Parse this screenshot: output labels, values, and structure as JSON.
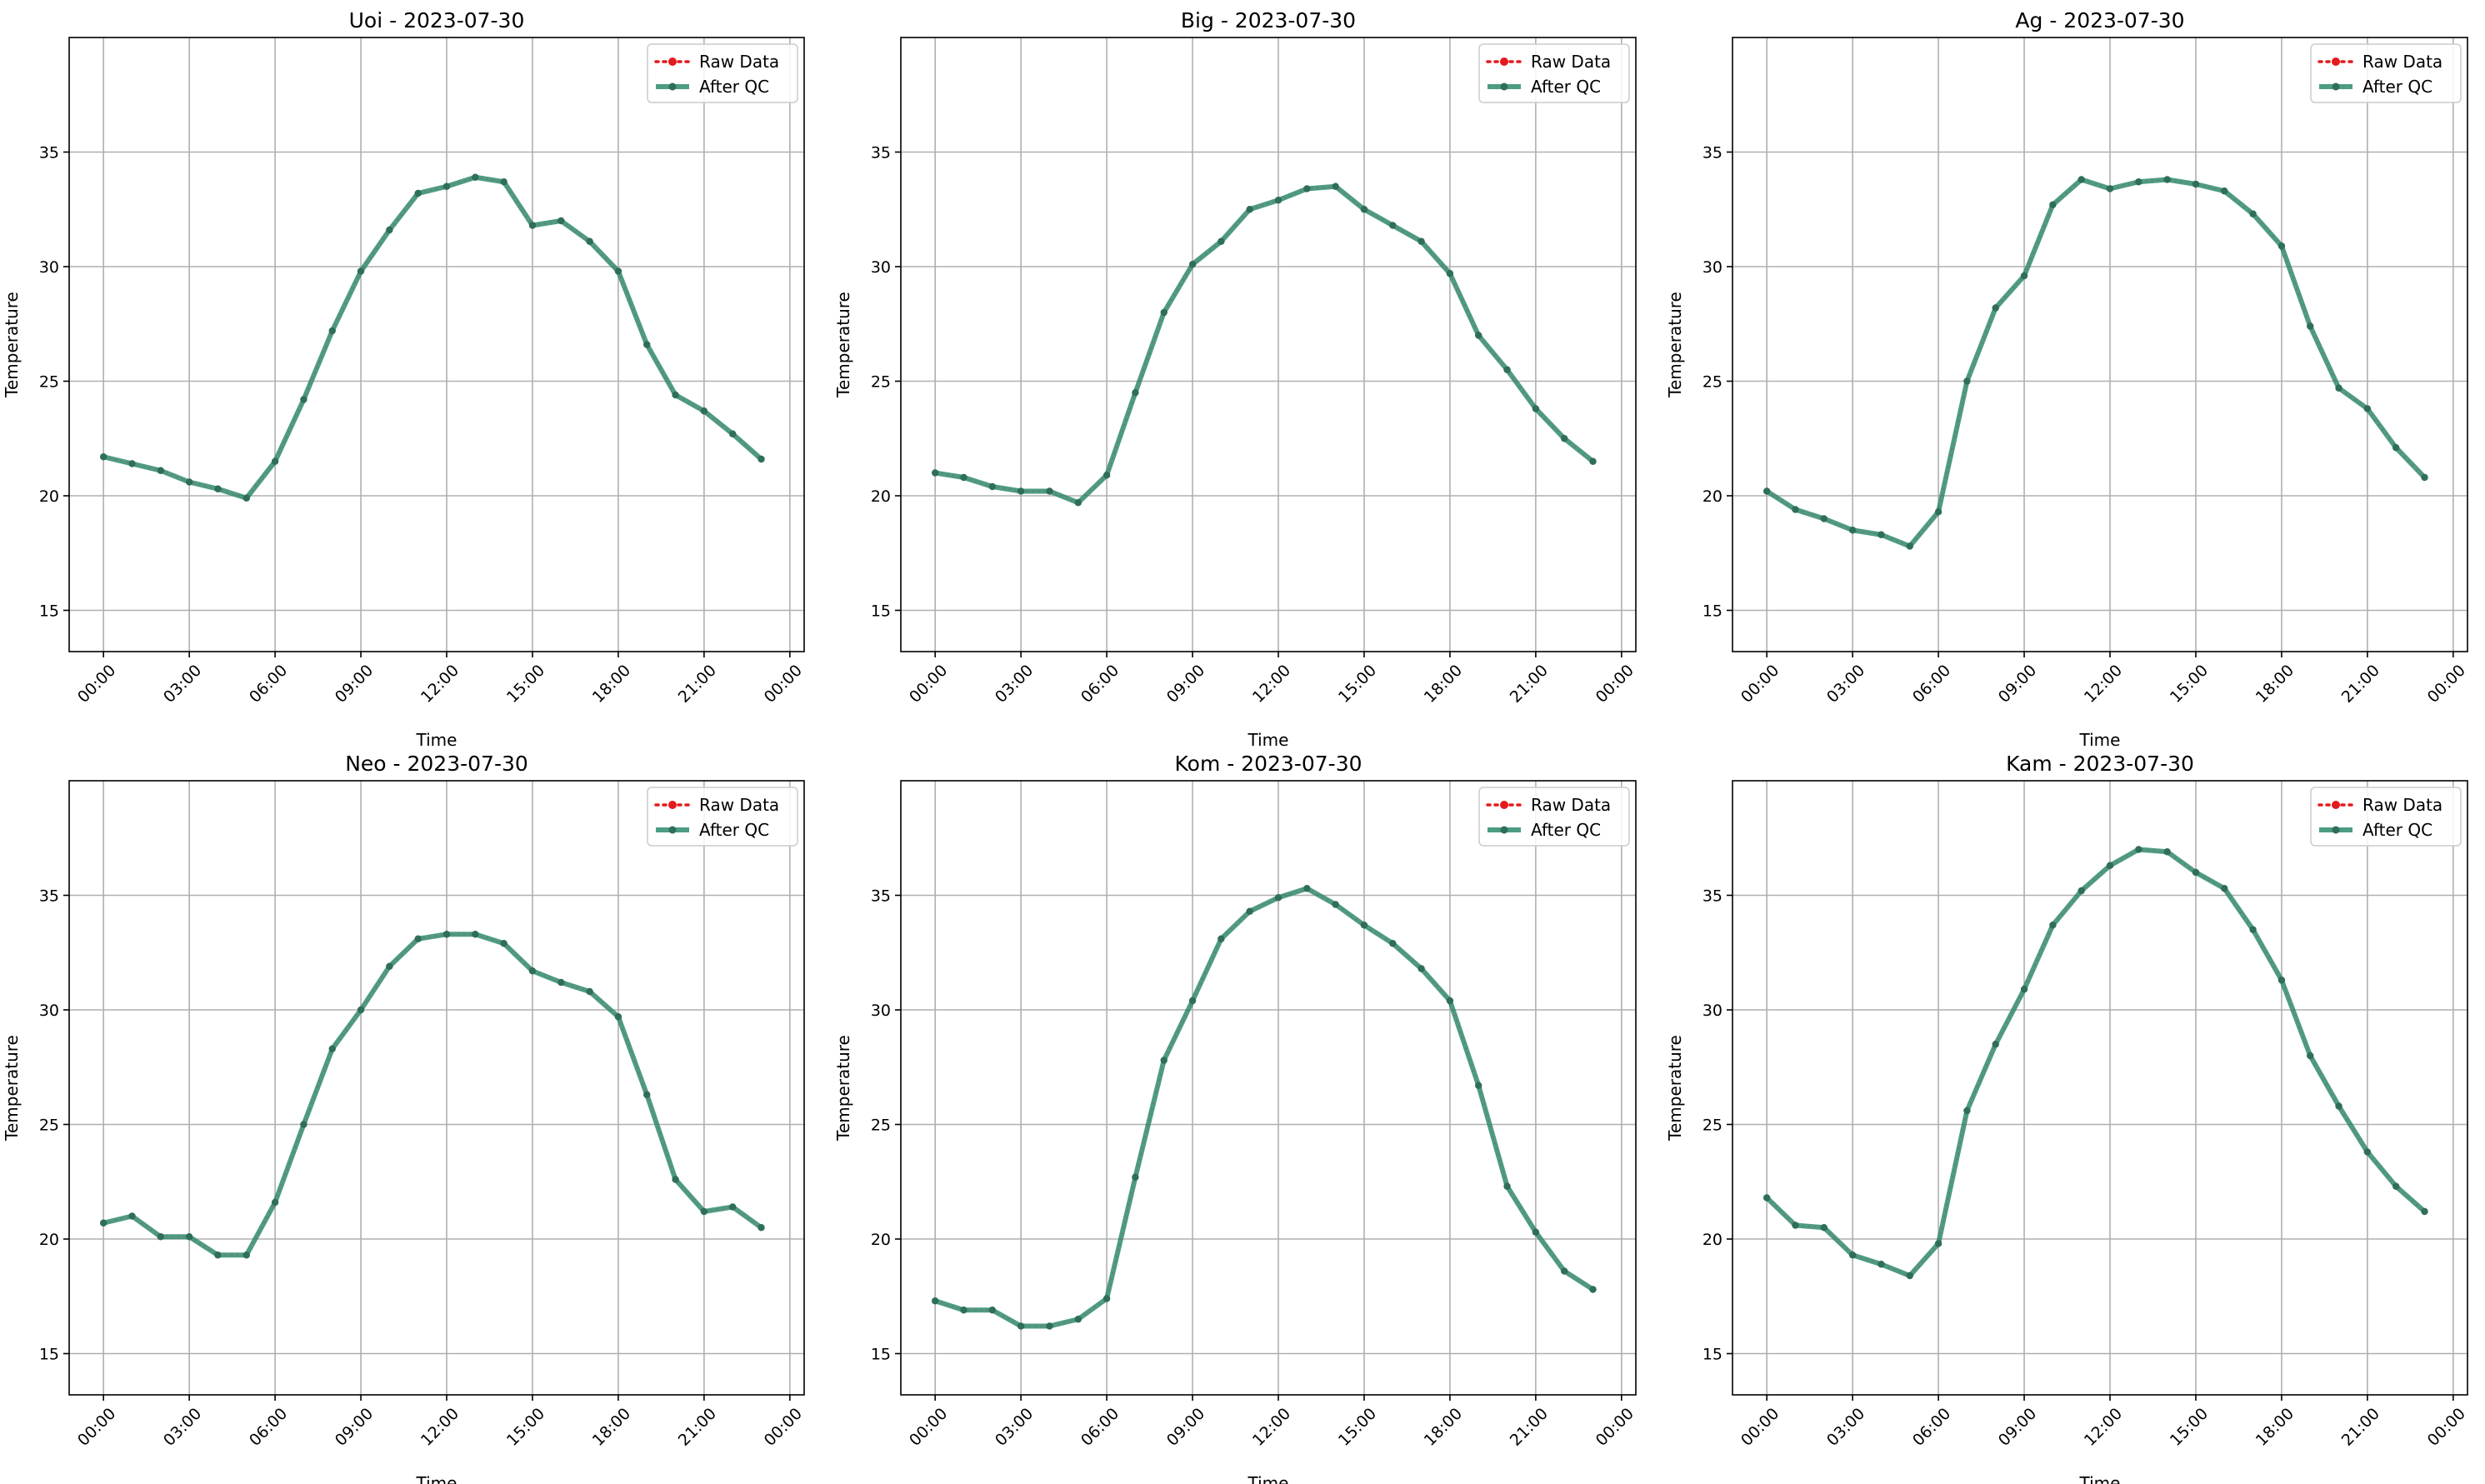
{
  "colors": {
    "raw": "#e41a1c",
    "qc": "#2e8b6e",
    "grid": "#b0b0b0",
    "axes": "#000000"
  },
  "chart_data": [
    {
      "type": "line",
      "title": "Uoi - 2023-07-30",
      "xlabel": "Time",
      "ylabel": "Temperature",
      "x": [
        0,
        1,
        2,
        3,
        4,
        5,
        6,
        7,
        8,
        9,
        10,
        11,
        12,
        13,
        14,
        15,
        16,
        17,
        18,
        19,
        20,
        21,
        22,
        23
      ],
      "xlim": [
        -1.2,
        24.5
      ],
      "ylim": [
        13.2,
        40.0
      ],
      "xticks": [
        0,
        3,
        6,
        9,
        12,
        15,
        18,
        21,
        24
      ],
      "xticklabels": [
        "00:00",
        "03:00",
        "06:00",
        "09:00",
        "12:00",
        "15:00",
        "18:00",
        "21:00",
        "00:00"
      ],
      "yticks": [
        15,
        20,
        25,
        30,
        35
      ],
      "yticklabels": [
        "15",
        "20",
        "25",
        "30",
        "35"
      ],
      "grid": true,
      "legend": "top-right",
      "series": [
        {
          "name": "Raw Data",
          "style": "dotted",
          "values": [
            21.7,
            21.4,
            21.1,
            20.6,
            20.3,
            19.9,
            21.5,
            24.2,
            27.2,
            29.8,
            31.6,
            33.2,
            33.5,
            33.9,
            33.7,
            31.8,
            32.0,
            31.1,
            29.8,
            26.6,
            24.4,
            23.7,
            22.7,
            21.6
          ]
        },
        {
          "name": "After QC",
          "style": "solid",
          "values": [
            21.7,
            21.4,
            21.1,
            20.6,
            20.3,
            19.9,
            21.5,
            24.2,
            27.2,
            29.8,
            31.6,
            33.2,
            33.5,
            33.9,
            33.7,
            31.8,
            32.0,
            31.1,
            29.8,
            26.6,
            24.4,
            23.7,
            22.7,
            21.6
          ]
        }
      ]
    },
    {
      "type": "line",
      "title": "Big - 2023-07-30",
      "xlabel": "Time",
      "ylabel": "Temperature",
      "x": [
        0,
        1,
        2,
        3,
        4,
        5,
        6,
        7,
        8,
        9,
        10,
        11,
        12,
        13,
        14,
        15,
        16,
        17,
        18,
        19,
        20,
        21,
        22,
        23
      ],
      "xlim": [
        -1.2,
        24.5
      ],
      "ylim": [
        13.2,
        40.0
      ],
      "xticks": [
        0,
        3,
        6,
        9,
        12,
        15,
        18,
        21,
        24
      ],
      "xticklabels": [
        "00:00",
        "03:00",
        "06:00",
        "09:00",
        "12:00",
        "15:00",
        "18:00",
        "21:00",
        "00:00"
      ],
      "yticks": [
        15,
        20,
        25,
        30,
        35
      ],
      "yticklabels": [
        "15",
        "20",
        "25",
        "30",
        "35"
      ],
      "grid": true,
      "legend": "top-right",
      "series": [
        {
          "name": "Raw Data",
          "style": "dotted",
          "values": [
            21.0,
            20.8,
            20.4,
            20.2,
            20.2,
            19.7,
            20.9,
            24.5,
            28.0,
            30.1,
            31.1,
            32.5,
            32.9,
            33.4,
            33.5,
            32.5,
            31.8,
            31.1,
            29.7,
            27.0,
            25.5,
            23.8,
            22.5,
            21.5
          ]
        },
        {
          "name": "After QC",
          "style": "solid",
          "values": [
            21.0,
            20.8,
            20.4,
            20.2,
            20.2,
            19.7,
            20.9,
            24.5,
            28.0,
            30.1,
            31.1,
            32.5,
            32.9,
            33.4,
            33.5,
            32.5,
            31.8,
            31.1,
            29.7,
            27.0,
            25.5,
            23.8,
            22.5,
            21.5
          ]
        }
      ]
    },
    {
      "type": "line",
      "title": "Ag - 2023-07-30",
      "xlabel": "Time",
      "ylabel": "Temperature",
      "x": [
        0,
        1,
        2,
        3,
        4,
        5,
        6,
        7,
        8,
        9,
        10,
        11,
        12,
        13,
        14,
        15,
        16,
        17,
        18,
        19,
        20,
        21,
        22,
        23
      ],
      "xlim": [
        -1.2,
        24.5
      ],
      "ylim": [
        13.2,
        40.0
      ],
      "xticks": [
        0,
        3,
        6,
        9,
        12,
        15,
        18,
        21,
        24
      ],
      "xticklabels": [
        "00:00",
        "03:00",
        "06:00",
        "09:00",
        "12:00",
        "15:00",
        "18:00",
        "21:00",
        "00:00"
      ],
      "yticks": [
        15,
        20,
        25,
        30,
        35
      ],
      "yticklabels": [
        "15",
        "20",
        "25",
        "30",
        "35"
      ],
      "grid": true,
      "legend": "top-right",
      "series": [
        {
          "name": "Raw Data",
          "style": "dotted",
          "values": [
            20.2,
            19.4,
            19.0,
            18.5,
            18.3,
            17.8,
            19.3,
            25.0,
            28.2,
            29.6,
            32.7,
            33.8,
            33.4,
            33.7,
            33.8,
            33.6,
            33.3,
            32.3,
            30.9,
            27.4,
            24.7,
            23.8,
            22.1,
            20.8
          ]
        },
        {
          "name": "After QC",
          "style": "solid",
          "values": [
            20.2,
            19.4,
            19.0,
            18.5,
            18.3,
            17.8,
            19.3,
            25.0,
            28.2,
            29.6,
            32.7,
            33.8,
            33.4,
            33.7,
            33.8,
            33.6,
            33.3,
            32.3,
            30.9,
            27.4,
            24.7,
            23.8,
            22.1,
            20.8
          ]
        }
      ]
    },
    {
      "type": "line",
      "title": "Neo - 2023-07-30",
      "xlabel": "Time",
      "ylabel": "Temperature",
      "x": [
        0,
        1,
        2,
        3,
        4,
        5,
        6,
        7,
        8,
        9,
        10,
        11,
        12,
        13,
        14,
        15,
        16,
        17,
        18,
        19,
        20,
        21,
        22,
        23
      ],
      "xlim": [
        -1.2,
        24.5
      ],
      "ylim": [
        13.2,
        40.0
      ],
      "xticks": [
        0,
        3,
        6,
        9,
        12,
        15,
        18,
        21,
        24
      ],
      "xticklabels": [
        "00:00",
        "03:00",
        "06:00",
        "09:00",
        "12:00",
        "15:00",
        "18:00",
        "21:00",
        "00:00"
      ],
      "yticks": [
        15,
        20,
        25,
        30,
        35
      ],
      "yticklabels": [
        "15",
        "20",
        "25",
        "30",
        "35"
      ],
      "grid": true,
      "legend": "top-right",
      "series": [
        {
          "name": "Raw Data",
          "style": "dotted",
          "values": [
            20.7,
            21.0,
            20.1,
            20.1,
            19.3,
            19.3,
            21.6,
            25.0,
            28.3,
            30.0,
            31.9,
            33.1,
            33.3,
            33.3,
            32.9,
            31.7,
            31.2,
            30.8,
            29.7,
            26.3,
            22.6,
            21.2,
            21.4,
            20.5
          ]
        },
        {
          "name": "After QC",
          "style": "solid",
          "values": [
            20.7,
            21.0,
            20.1,
            20.1,
            19.3,
            19.3,
            21.6,
            25.0,
            28.3,
            30.0,
            31.9,
            33.1,
            33.3,
            33.3,
            32.9,
            31.7,
            31.2,
            30.8,
            29.7,
            26.3,
            22.6,
            21.2,
            21.4,
            20.5
          ]
        }
      ]
    },
    {
      "type": "line",
      "title": "Kom - 2023-07-30",
      "xlabel": "Time",
      "ylabel": "Temperature",
      "x": [
        0,
        1,
        2,
        3,
        4,
        5,
        6,
        7,
        8,
        9,
        10,
        11,
        12,
        13,
        14,
        15,
        16,
        17,
        18,
        19,
        20,
        21,
        22,
        23
      ],
      "xlim": [
        -1.2,
        24.5
      ],
      "ylim": [
        13.2,
        40.0
      ],
      "xticks": [
        0,
        3,
        6,
        9,
        12,
        15,
        18,
        21,
        24
      ],
      "xticklabels": [
        "00:00",
        "03:00",
        "06:00",
        "09:00",
        "12:00",
        "15:00",
        "18:00",
        "21:00",
        "00:00"
      ],
      "yticks": [
        15,
        20,
        25,
        30,
        35
      ],
      "yticklabels": [
        "15",
        "20",
        "25",
        "30",
        "35"
      ],
      "grid": true,
      "legend": "top-right",
      "series": [
        {
          "name": "Raw Data",
          "style": "dotted",
          "values": [
            17.3,
            16.9,
            16.9,
            16.2,
            16.2,
            16.5,
            17.4,
            22.7,
            27.8,
            30.4,
            33.1,
            34.3,
            34.9,
            35.3,
            34.6,
            33.7,
            32.9,
            31.8,
            30.4,
            26.7,
            22.3,
            20.3,
            18.6,
            17.8
          ]
        },
        {
          "name": "After QC",
          "style": "solid",
          "values": [
            17.3,
            16.9,
            16.9,
            16.2,
            16.2,
            16.5,
            17.4,
            22.7,
            27.8,
            30.4,
            33.1,
            34.3,
            34.9,
            35.3,
            34.6,
            33.7,
            32.9,
            31.8,
            30.4,
            26.7,
            22.3,
            20.3,
            18.6,
            17.8
          ]
        }
      ]
    },
    {
      "type": "line",
      "title": "Kam - 2023-07-30",
      "xlabel": "Time",
      "ylabel": "Temperature",
      "x": [
        0,
        1,
        2,
        3,
        4,
        5,
        6,
        7,
        8,
        9,
        10,
        11,
        12,
        13,
        14,
        15,
        16,
        17,
        18,
        19,
        20,
        21,
        22,
        23
      ],
      "xlim": [
        -1.2,
        24.5
      ],
      "ylim": [
        13.2,
        40.0
      ],
      "xticks": [
        0,
        3,
        6,
        9,
        12,
        15,
        18,
        21,
        24
      ],
      "xticklabels": [
        "00:00",
        "03:00",
        "06:00",
        "09:00",
        "12:00",
        "15:00",
        "18:00",
        "21:00",
        "00:00"
      ],
      "yticks": [
        15,
        20,
        25,
        30,
        35
      ],
      "yticklabels": [
        "15",
        "20",
        "25",
        "30",
        "35"
      ],
      "grid": true,
      "legend": "top-right",
      "series": [
        {
          "name": "Raw Data",
          "style": "dotted",
          "values": [
            21.8,
            20.6,
            20.5,
            19.3,
            18.9,
            18.4,
            19.8,
            25.6,
            28.5,
            30.9,
            33.7,
            35.2,
            36.3,
            37.0,
            36.9,
            36.0,
            35.3,
            33.5,
            31.3,
            28.0,
            25.8,
            23.8,
            22.3,
            21.2
          ]
        },
        {
          "name": "After QC",
          "style": "solid",
          "values": [
            21.8,
            20.6,
            20.5,
            19.3,
            18.9,
            18.4,
            19.8,
            25.6,
            28.5,
            30.9,
            33.7,
            35.2,
            36.3,
            37.0,
            36.9,
            36.0,
            35.3,
            33.5,
            31.3,
            28.0,
            25.8,
            23.8,
            22.3,
            21.2
          ]
        }
      ]
    }
  ]
}
